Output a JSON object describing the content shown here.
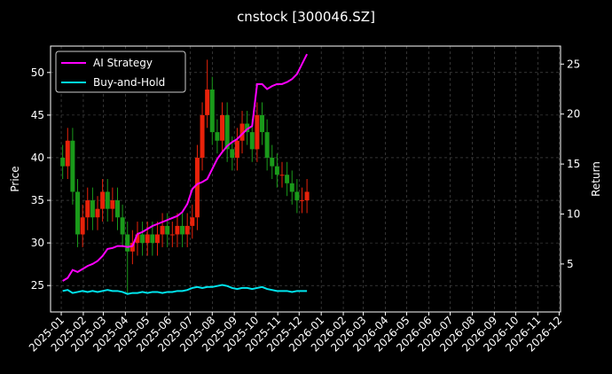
{
  "chart_data": {
    "type": "candlestick",
    "title": "cnstock [300046.SZ]",
    "y_label": "Price",
    "y2_label": "Return",
    "x": [
      "2025-01-03",
      "2025-01-10",
      "2025-01-17",
      "2025-01-24",
      "2025-01-31",
      "2025-02-07",
      "2025-02-14",
      "2025-02-21",
      "2025-02-28",
      "2025-03-07",
      "2025-03-14",
      "2025-03-21",
      "2025-03-28",
      "2025-04-04",
      "2025-04-11",
      "2025-04-18",
      "2025-04-25",
      "2025-05-02",
      "2025-05-09",
      "2025-05-16",
      "2025-05-23",
      "2025-05-30",
      "2025-06-06",
      "2025-06-13",
      "2025-06-20",
      "2025-06-27",
      "2025-07-04",
      "2025-07-11",
      "2025-07-18",
      "2025-07-25",
      "2025-08-01",
      "2025-08-08",
      "2025-08-15",
      "2025-08-22",
      "2025-08-29",
      "2025-09-05",
      "2025-09-12",
      "2025-09-19",
      "2025-09-26",
      "2025-10-03",
      "2025-10-10",
      "2025-10-17",
      "2025-10-24",
      "2025-10-31",
      "2025-11-07",
      "2025-11-14",
      "2025-11-21",
      "2025-11-28",
      "2025-12-05",
      "2025-12-12"
    ],
    "open": [
      40,
      39,
      42,
      36,
      31,
      33,
      35,
      33,
      34,
      36,
      34,
      35,
      33,
      31,
      29,
      30,
      31,
      30,
      31,
      30,
      31,
      32,
      31,
      31,
      32,
      31,
      32,
      33,
      40,
      45,
      48,
      43,
      42,
      45,
      41,
      40,
      42,
      44,
      43,
      41,
      45,
      43,
      40,
      39,
      38,
      38,
      37,
      36,
      35,
      35
    ],
    "high": [
      41.5,
      43.5,
      43.5,
      37.5,
      34.5,
      36.5,
      36.5,
      35.5,
      37.5,
      37.5,
      36.5,
      36.5,
      34.5,
      32.5,
      31.5,
      32.5,
      32.5,
      32.5,
      32.5,
      32.5,
      33.5,
      33.5,
      32.5,
      33.5,
      33.5,
      33.5,
      34.5,
      41.5,
      46.5,
      51.5,
      49.5,
      44.5,
      46.5,
      46.5,
      42.5,
      43.5,
      45.5,
      45.5,
      44.5,
      46.5,
      46.5,
      44.5,
      41.5,
      40.5,
      39.5,
      39.5,
      38.5,
      37.5,
      36.5,
      37.5
    ],
    "low": [
      37.5,
      37.5,
      34.5,
      29.5,
      29.5,
      31.5,
      31.5,
      31.5,
      32.5,
      32.5,
      32.5,
      31.5,
      29.5,
      24,
      27.5,
      28.5,
      28.5,
      28.5,
      28.5,
      28.5,
      29.5,
      29.5,
      29.5,
      29.5,
      29.5,
      29.5,
      30.5,
      31.5,
      38.5,
      43.5,
      41.5,
      40.5,
      40.5,
      39.5,
      38.5,
      38.5,
      40.5,
      41.5,
      39.5,
      39.5,
      41.5,
      38.5,
      37.5,
      36.5,
      36.5,
      35.5,
      34.5,
      33.5,
      33.5,
      33.5
    ],
    "close": [
      39,
      42,
      36,
      31,
      33,
      35,
      33,
      34,
      36,
      34,
      35,
      33,
      31,
      29,
      30,
      31,
      30,
      31,
      30,
      31,
      32,
      31,
      31,
      32,
      31,
      32,
      33,
      40,
      45,
      48,
      43,
      42,
      45,
      41,
      40,
      42,
      44,
      43,
      41,
      45,
      43,
      40,
      39,
      38,
      38,
      37,
      36,
      35,
      35,
      36
    ],
    "up_color": "#e8220a",
    "down_color": "#1a9a1a",
    "series": [
      {
        "name": "AI Strategy",
        "color": "#ff00ff",
        "axis": "y2",
        "values": [
          3.3,
          3.6,
          4.4,
          4.2,
          4.5,
          4.8,
          5.0,
          5.3,
          5.8,
          6.5,
          6.6,
          6.8,
          6.8,
          6.7,
          6.8,
          8.0,
          8.2,
          8.5,
          8.8,
          9.0,
          9.2,
          9.4,
          9.6,
          9.8,
          10.2,
          11.0,
          12.5,
          13.0,
          13.2,
          13.5,
          14.5,
          15.5,
          16.2,
          16.8,
          17.2,
          17.5,
          18.0,
          18.5,
          18.8,
          23.0,
          23.0,
          22.5,
          22.8,
          23.0,
          23.0,
          23.2,
          23.5,
          24.0,
          25.0,
          26.0
        ]
      },
      {
        "name": "Buy-and-Hold",
        "color": "#00e5ee",
        "axis": "y2",
        "values": [
          2.3,
          2.4,
          2.1,
          2.2,
          2.3,
          2.2,
          2.3,
          2.2,
          2.3,
          2.4,
          2.3,
          2.3,
          2.2,
          2.0,
          2.1,
          2.1,
          2.2,
          2.1,
          2.2,
          2.2,
          2.1,
          2.2,
          2.2,
          2.3,
          2.3,
          2.4,
          2.6,
          2.7,
          2.6,
          2.7,
          2.7,
          2.8,
          2.9,
          2.8,
          2.6,
          2.5,
          2.6,
          2.6,
          2.5,
          2.6,
          2.7,
          2.5,
          2.4,
          2.3,
          2.3,
          2.3,
          2.2,
          2.3,
          2.3,
          2.3
        ]
      }
    ],
    "xlim": [
      "2024-12-17",
      "2026-12-03"
    ],
    "xticks": [
      "2025-01",
      "2025-02",
      "2025-03",
      "2025-04",
      "2025-05",
      "2025-06",
      "2025-07",
      "2025-08",
      "2025-09",
      "2025-10",
      "2025-11",
      "2025-12",
      "2026-01",
      "2026-02",
      "2026-03",
      "2026-04",
      "2026-05",
      "2026-06",
      "2026-07",
      "2026-08",
      "2026-09",
      "2026-10",
      "2026-11",
      "2026-12"
    ],
    "ylim": [
      21.9,
      53.1
    ],
    "yticks": [
      25,
      30,
      35,
      40,
      45,
      50
    ],
    "y2lim": [
      0.2,
      26.8
    ],
    "y2ticks": [
      5,
      10,
      15,
      20,
      25
    ],
    "grid": true,
    "legend": "upper left"
  }
}
